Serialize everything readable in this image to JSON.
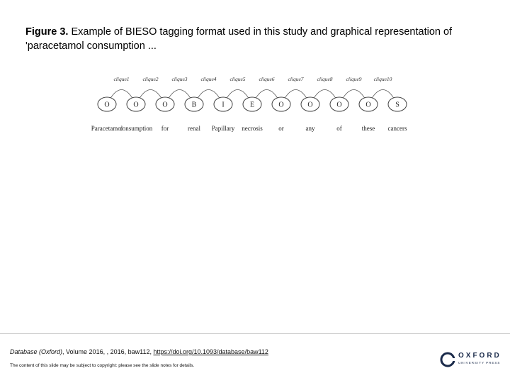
{
  "figure": {
    "title_bold": "Figure 3.",
    "title_rest": " Example of BIESO tagging format used in this study and graphical representation of 'paracetamol consumption ..."
  },
  "diagram": {
    "cliques": [
      "clique1",
      "clique2",
      "clique3",
      "clique4",
      "clique5",
      "clique6",
      "clique7",
      "clique8",
      "clique9",
      "clique10"
    ],
    "nodes": [
      {
        "tag": "O",
        "word": "Paracetamol"
      },
      {
        "tag": "O",
        "word": "consumption"
      },
      {
        "tag": "O",
        "word": "for"
      },
      {
        "tag": "B",
        "word": "renal"
      },
      {
        "tag": "I",
        "word": "Papillary"
      },
      {
        "tag": "E",
        "word": "necrosis"
      },
      {
        "tag": "O",
        "word": "or"
      },
      {
        "tag": "O",
        "word": "any"
      },
      {
        "tag": "O",
        "word": "of"
      },
      {
        "tag": "O",
        "word": "these"
      },
      {
        "tag": "S",
        "word": "cancers"
      }
    ]
  },
  "footer": {
    "citation_journal": "Database (Oxford)",
    "citation_text": ", Volume 2016, , 2016, baw112, ",
    "citation_link": "https://doi.org/10.1093/database/baw112",
    "notice": "The content of this slide may be subject to copyright: please see the slide notes for details.",
    "logo_word": "OXFORD",
    "logo_sub": "UNIVERSITY PRESS"
  }
}
